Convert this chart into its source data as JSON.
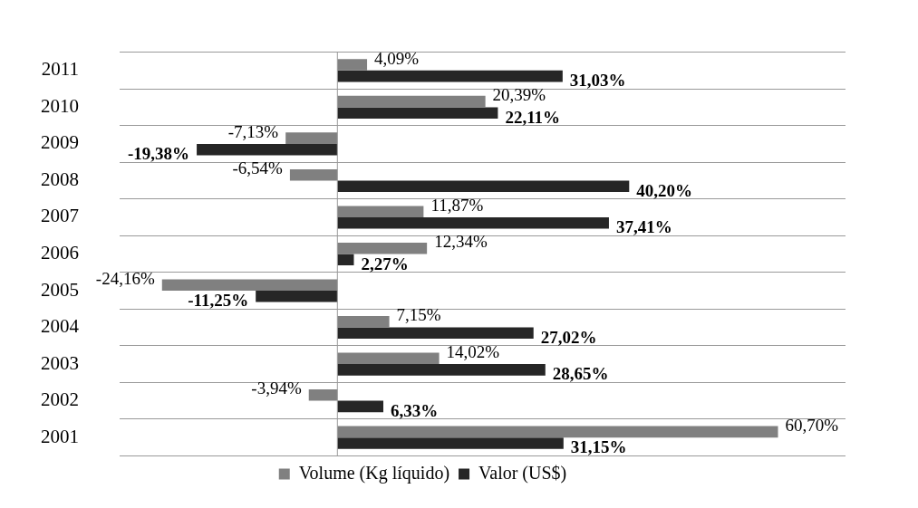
{
  "chart_data": {
    "type": "bar",
    "orientation": "horizontal",
    "categories": [
      "2011",
      "2010",
      "2009",
      "2008",
      "2007",
      "2006",
      "2005",
      "2004",
      "2003",
      "2002",
      "2001"
    ],
    "series": [
      {
        "name": "Volume (Kg líquido)",
        "color": "#808080",
        "values": [
          4.09,
          20.39,
          -7.13,
          -6.54,
          11.87,
          12.34,
          -24.16,
          7.15,
          14.02,
          -3.94,
          60.7
        ],
        "value_labels": [
          "4,09%",
          "20,39%",
          "-7,13%",
          "-6,54%",
          "11,87%",
          "12,34%",
          "-24,16%",
          "7,15%",
          "14,02%",
          "-3,94%",
          "60,70%"
        ]
      },
      {
        "name": "Valor (US$)",
        "color": "#262626",
        "values": [
          31.03,
          22.11,
          -19.38,
          40.2,
          37.41,
          2.27,
          -11.25,
          27.02,
          28.65,
          6.33,
          31.15
        ],
        "value_labels": [
          "31,03%",
          "22,11%",
          "-19,38%",
          "40,20%",
          "37,41%",
          "2,27%",
          "-11,25%",
          "27,02%",
          "28,65%",
          "6,33%",
          "31,15%"
        ]
      }
    ],
    "grid": "y",
    "legend": "bottom",
    "tick_labels": "y"
  }
}
